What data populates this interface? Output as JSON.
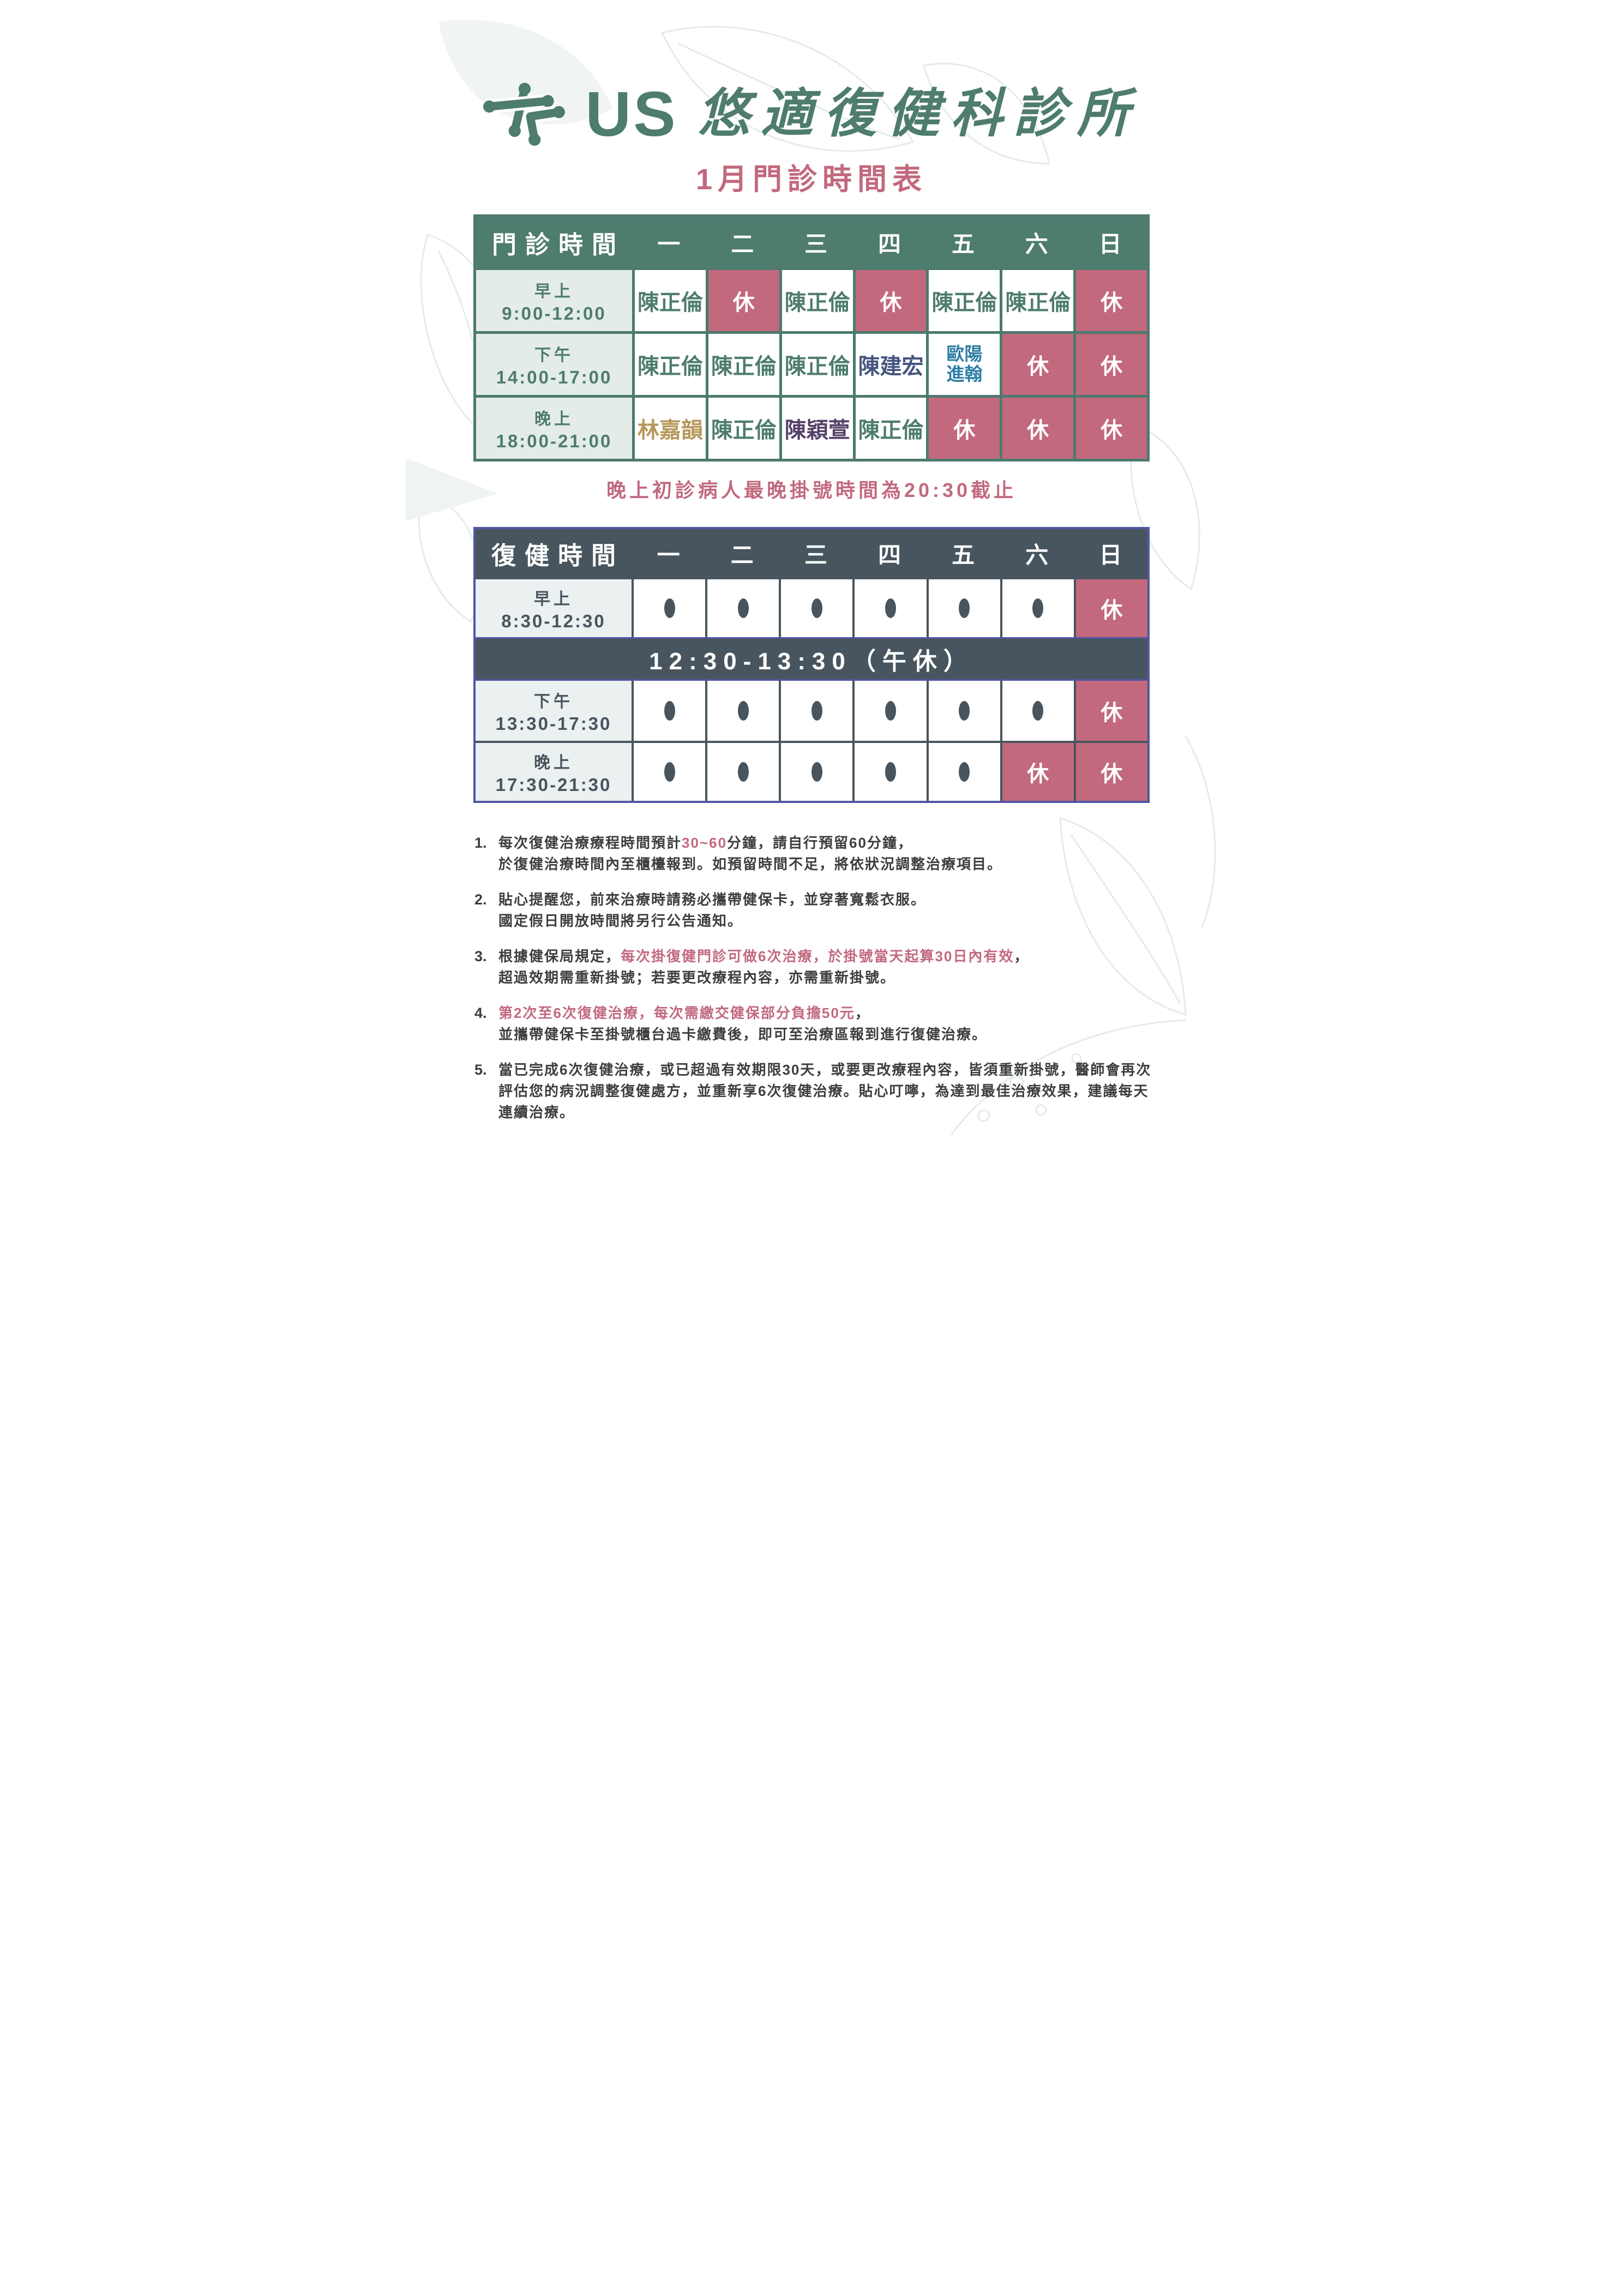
{
  "brand": {
    "wordmark": "US",
    "clinic_name": "悠適復健科診所"
  },
  "page_title": "1月門診時間表",
  "clinic_table": {
    "title": "門診時間",
    "days": [
      "一",
      "二",
      "三",
      "四",
      "五",
      "六",
      "日"
    ],
    "rows": [
      {
        "period": "早上",
        "time": "9:00-12:00",
        "cells": [
          {
            "type": "doctor",
            "text": "陳正倫",
            "color": "green"
          },
          {
            "type": "closed",
            "text": "休"
          },
          {
            "type": "doctor",
            "text": "陳正倫",
            "color": "green"
          },
          {
            "type": "closed",
            "text": "休"
          },
          {
            "type": "doctor",
            "text": "陳正倫",
            "color": "green"
          },
          {
            "type": "doctor",
            "text": "陳正倫",
            "color": "green"
          },
          {
            "type": "closed",
            "text": "休"
          }
        ]
      },
      {
        "period": "下午",
        "time": "14:00-17:00",
        "cells": [
          {
            "type": "doctor",
            "text": "陳正倫",
            "color": "green"
          },
          {
            "type": "doctor",
            "text": "陳正倫",
            "color": "green"
          },
          {
            "type": "doctor",
            "text": "陳正倫",
            "color": "green"
          },
          {
            "type": "doctor",
            "text": "陳建宏",
            "color": "navy"
          },
          {
            "type": "doctor",
            "text": "歐陽\n進翰",
            "color": "blue"
          },
          {
            "type": "closed",
            "text": "休"
          },
          {
            "type": "closed",
            "text": "休"
          }
        ]
      },
      {
        "period": "晚上",
        "time": "18:00-21:00",
        "cells": [
          {
            "type": "doctor",
            "text": "林嘉韻",
            "color": "gold"
          },
          {
            "type": "doctor",
            "text": "陳正倫",
            "color": "green"
          },
          {
            "type": "doctor",
            "text": "陳穎萱",
            "color": "purple"
          },
          {
            "type": "doctor",
            "text": "陳正倫",
            "color": "green"
          },
          {
            "type": "closed",
            "text": "休"
          },
          {
            "type": "closed",
            "text": "休"
          },
          {
            "type": "closed",
            "text": "休"
          }
        ]
      }
    ]
  },
  "clinic_note": "晚上初診病人最晚掛號時間為20:30截止",
  "rehab_table": {
    "title": "復健時間",
    "days": [
      "一",
      "二",
      "三",
      "四",
      "五",
      "六",
      "日"
    ],
    "open_symbol": "O",
    "closed_label": "休",
    "rows": [
      {
        "type": "slots",
        "period": "早上",
        "time": "8:30-12:30",
        "cells": [
          "open",
          "open",
          "open",
          "open",
          "open",
          "open",
          "closed"
        ]
      },
      {
        "type": "lunch",
        "text": "12:30-13:30（午休）"
      },
      {
        "type": "slots",
        "period": "下午",
        "time": "13:30-17:30",
        "cells": [
          "open",
          "open",
          "open",
          "open",
          "open",
          "open",
          "closed"
        ]
      },
      {
        "type": "slots",
        "period": "晚上",
        "time": "17:30-21:30",
        "cells": [
          "open",
          "open",
          "open",
          "open",
          "open",
          "closed",
          "closed"
        ]
      }
    ]
  },
  "notes": [
    {
      "number": "1.",
      "lines": [
        [
          {
            "text": "每次復健治療療程時間預計"
          },
          {
            "text": "30~60",
            "pink": true
          },
          {
            "text": "分鐘，請自行預留60分鐘，"
          }
        ],
        [
          {
            "text": "於復健治療時間內至櫃檯報到。如預留時間不足，將依狀況調整治療項目。"
          }
        ]
      ]
    },
    {
      "number": "2.",
      "lines": [
        [
          {
            "text": "貼心提醒您，前來治療時請務必攜帶健保卡，並穿著寬鬆衣服。"
          }
        ],
        [
          {
            "text": "國定假日開放時間將另行公告通知。"
          }
        ]
      ]
    },
    {
      "number": "3.",
      "lines": [
        [
          {
            "text": "根據健保局規定，"
          },
          {
            "text": "每次掛復健門診可做6次治療，於掛號當天起算30日內有效",
            "pink": true
          },
          {
            "text": "，"
          }
        ],
        [
          {
            "text": "超過效期需重新掛號；若要更改療程內容，亦需重新掛號。"
          }
        ]
      ]
    },
    {
      "number": "4.",
      "lines": [
        [
          {
            "text": "第2次至6次復健治療，每次需繳交健保部分負擔50元",
            "pink": true
          },
          {
            "text": "，"
          }
        ],
        [
          {
            "text": "並攜帶健保卡至掛號櫃台過卡繳費後，即可至治療區報到進行復健治療。"
          }
        ]
      ]
    },
    {
      "number": "5.",
      "lines": [
        [
          {
            "text": "當已完成6次復健治療，或已超過有效期限30天，或要更改療程內容，皆須重新掛號，醫師會再次"
          }
        ],
        [
          {
            "text": "評估您的病況調整復健處方，並重新享6次復健治療。貼心叮嚀，為達到最佳治療效果，建議每天"
          }
        ],
        [
          {
            "text": "連續治療。"
          }
        ]
      ]
    }
  ],
  "colors": {
    "green": "#4E7C6F",
    "rose": "#C2697E",
    "slate": "#48555E",
    "indigo": "#5156A4",
    "gold": "#B6985A",
    "navy": "#455580",
    "blue": "#2E7DA5",
    "purple": "#544069",
    "ink": "#3D3D3D",
    "light_green_bg": "#E4ECE7",
    "light_slate_bg": "#EBF0F0"
  }
}
